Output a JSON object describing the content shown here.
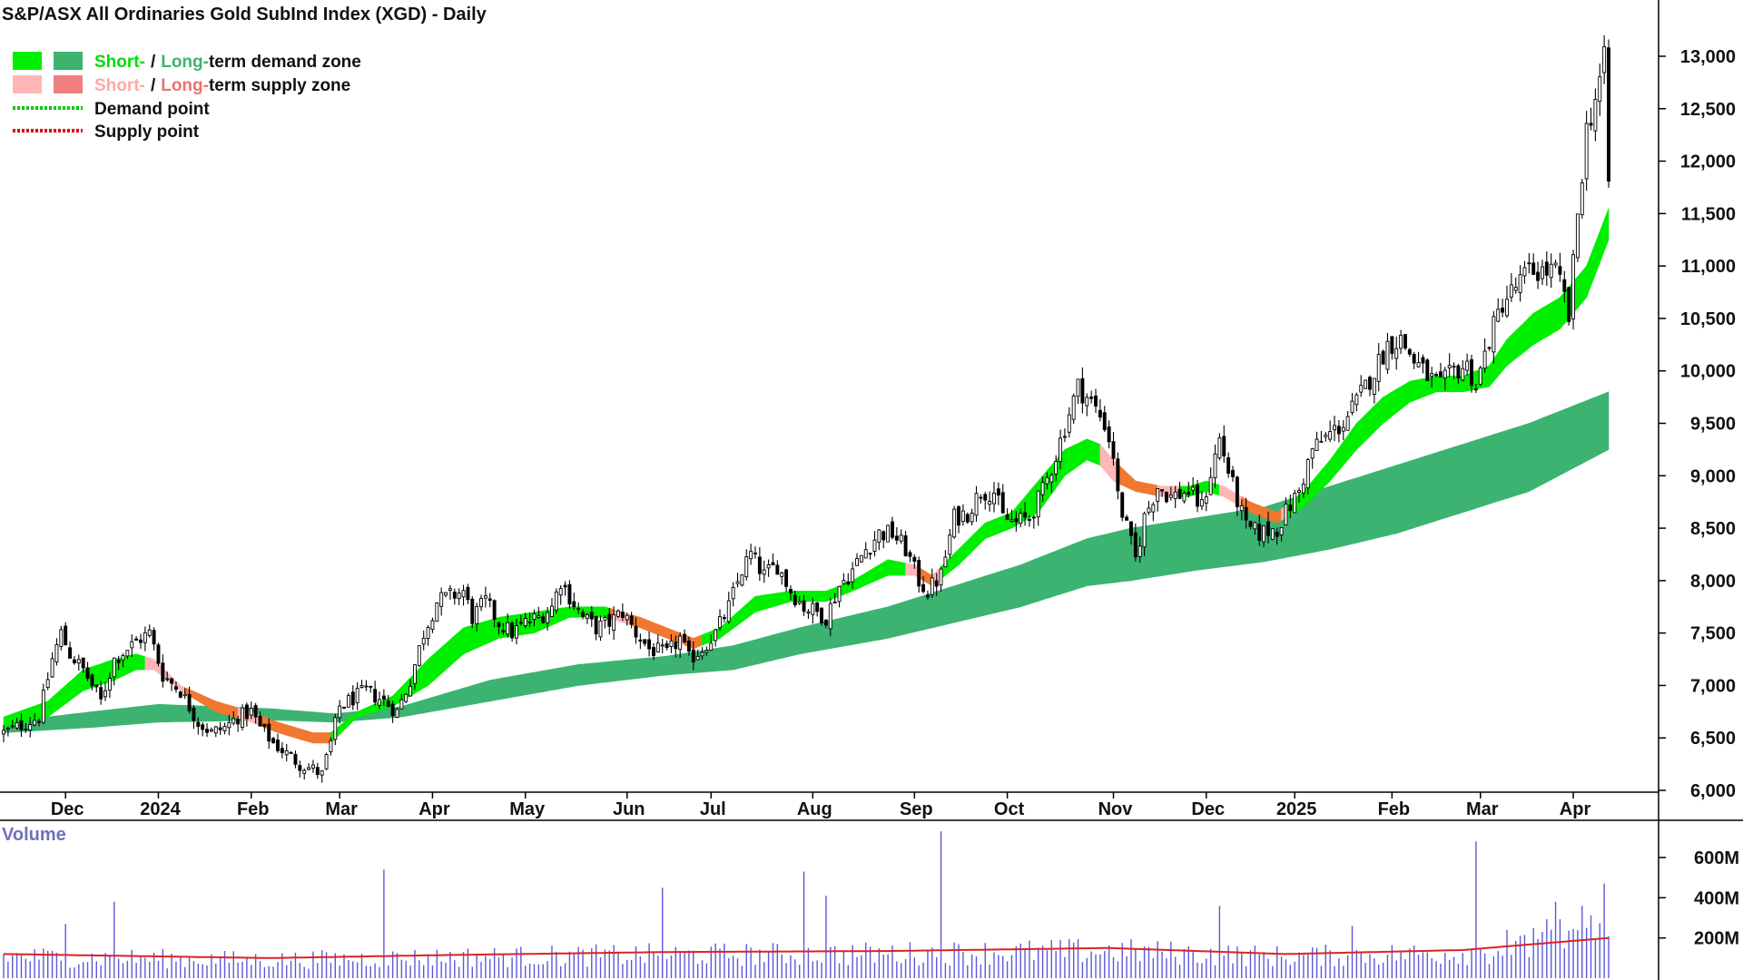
{
  "chart_data": {
    "type": "candlestick",
    "title": "S&P/ASX All Ordinaries Gold SubInd Index (XGD) - Daily",
    "ylim": [
      5900,
      13400
    ],
    "y_ticks": [
      {
        "value": 6000,
        "label": "6,000"
      },
      {
        "value": 6500,
        "label": "6,500"
      },
      {
        "value": 7000,
        "label": "7,000"
      },
      {
        "value": 7500,
        "label": "7,500"
      },
      {
        "value": 8000,
        "label": "8,000"
      },
      {
        "value": 8500,
        "label": "8,500"
      },
      {
        "value": 9000,
        "label": "9,000"
      },
      {
        "value": 9500,
        "label": "9,500"
      },
      {
        "value": 10000,
        "label": "10,000"
      },
      {
        "value": 10500,
        "label": "10,500"
      },
      {
        "value": 11000,
        "label": "11,000"
      },
      {
        "value": 11500,
        "label": "11,500"
      },
      {
        "value": 12000,
        "label": "12,000"
      },
      {
        "value": 12500,
        "label": "12,500"
      },
      {
        "value": 13000,
        "label": "13,000"
      }
    ],
    "x_ticks": [
      {
        "index": 14,
        "label": "Dec"
      },
      {
        "index": 35,
        "label": "2024"
      },
      {
        "index": 56,
        "label": "Feb"
      },
      {
        "index": 76,
        "label": "Mar"
      },
      {
        "index": 97,
        "label": "Apr"
      },
      {
        "index": 118,
        "label": "May"
      },
      {
        "index": 141,
        "label": "Jun"
      },
      {
        "index": 160,
        "label": "Jul"
      },
      {
        "index": 183,
        "label": "Aug"
      },
      {
        "index": 206,
        "label": "Sep"
      },
      {
        "index": 227,
        "label": "Oct"
      },
      {
        "index": 251,
        "label": "Nov"
      },
      {
        "index": 272,
        "label": "Dec"
      },
      {
        "index": 292,
        "label": "2025"
      },
      {
        "index": 314,
        "label": "Feb"
      },
      {
        "index": 334,
        "label": "Mar"
      },
      {
        "index": 355,
        "label": "Apr"
      }
    ],
    "close_path": [
      [
        0,
        6550
      ],
      [
        4,
        6620
      ],
      [
        8,
        6700
      ],
      [
        11,
        7250
      ],
      [
        13,
        7500
      ],
      [
        15,
        7300
      ],
      [
        18,
        7150
      ],
      [
        22,
        6850
      ],
      [
        25,
        7250
      ],
      [
        28,
        7350
      ],
      [
        31,
        7450
      ],
      [
        33,
        7500
      ],
      [
        36,
        7100
      ],
      [
        40,
        6950
      ],
      [
        44,
        6650
      ],
      [
        47,
        6550
      ],
      [
        50,
        6600
      ],
      [
        53,
        6700
      ],
      [
        56,
        6750
      ],
      [
        58,
        6600
      ],
      [
        61,
        6450
      ],
      [
        64,
        6350
      ],
      [
        67,
        6250
      ],
      [
        70,
        6200
      ],
      [
        72,
        6150
      ],
      [
        74,
        6450
      ],
      [
        76,
        6800
      ],
      [
        78,
        6850
      ],
      [
        82,
        6950
      ],
      [
        86,
        6850
      ],
      [
        89,
        6750
      ],
      [
        92,
        7050
      ],
      [
        95,
        7500
      ],
      [
        98,
        7800
      ],
      [
        101,
        7850
      ],
      [
        104,
        7900
      ],
      [
        106,
        7650
      ],
      [
        109,
        7800
      ],
      [
        112,
        7600
      ],
      [
        115,
        7500
      ],
      [
        118,
        7600
      ],
      [
        121,
        7650
      ],
      [
        124,
        7750
      ],
      [
        126,
        8000
      ],
      [
        128,
        7850
      ],
      [
        131,
        7650
      ],
      [
        134,
        7550
      ],
      [
        137,
        7600
      ],
      [
        140,
        7700
      ],
      [
        143,
        7500
      ],
      [
        146,
        7350
      ],
      [
        150,
        7300
      ],
      [
        153,
        7450
      ],
      [
        155,
        7250
      ],
      [
        158,
        7350
      ],
      [
        161,
        7500
      ],
      [
        164,
        7750
      ],
      [
        167,
        8100
      ],
      [
        169,
        8250
      ],
      [
        172,
        8050
      ],
      [
        175,
        8150
      ],
      [
        178,
        7900
      ],
      [
        181,
        7750
      ],
      [
        184,
        7700
      ],
      [
        186,
        7650
      ],
      [
        189,
        7950
      ],
      [
        192,
        8100
      ],
      [
        195,
        8300
      ],
      [
        198,
        8450
      ],
      [
        201,
        8450
      ],
      [
        204,
        8300
      ],
      [
        207,
        8000
      ],
      [
        209,
        7900
      ],
      [
        212,
        8050
      ],
      [
        215,
        8600
      ],
      [
        218,
        8650
      ],
      [
        221,
        8850
      ],
      [
        224,
        8850
      ],
      [
        226,
        8600
      ],
      [
        229,
        8550
      ],
      [
        232,
        8600
      ],
      [
        235,
        8850
      ],
      [
        238,
        9200
      ],
      [
        241,
        9600
      ],
      [
        243,
        9850
      ],
      [
        246,
        9700
      ],
      [
        249,
        9500
      ],
      [
        251,
        9200
      ],
      [
        252,
        8800
      ],
      [
        254,
        8500
      ],
      [
        256,
        8200
      ],
      [
        258,
        8600
      ],
      [
        261,
        8900
      ],
      [
        264,
        8800
      ],
      [
        268,
        8850
      ],
      [
        271,
        8700
      ],
      [
        275,
        9350
      ],
      [
        278,
        8900
      ],
      [
        281,
        8500
      ],
      [
        284,
        8450
      ],
      [
        288,
        8500
      ],
      [
        290,
        8650
      ],
      [
        293,
        8850
      ],
      [
        296,
        9250
      ],
      [
        300,
        9400
      ],
      [
        303,
        9500
      ],
      [
        306,
        9700
      ],
      [
        310,
        10000
      ],
      [
        313,
        10250
      ],
      [
        316,
        10300
      ],
      [
        319,
        10100
      ],
      [
        322,
        9950
      ],
      [
        325,
        9850
      ],
      [
        328,
        10000
      ],
      [
        331,
        10050
      ],
      [
        333,
        9850
      ],
      [
        336,
        10300
      ],
      [
        339,
        10650
      ],
      [
        342,
        10800
      ],
      [
        345,
        10950
      ],
      [
        348,
        10950
      ],
      [
        351,
        10950
      ],
      [
        353,
        10700
      ],
      [
        354,
        10500
      ],
      [
        356,
        11500
      ],
      [
        358,
        12300
      ],
      [
        360,
        12600
      ],
      [
        362,
        12950
      ],
      [
        363,
        11800
      ]
    ],
    "short_term_zone": {
      "upper": [
        [
          0,
          6700
        ],
        [
          10,
          6850
        ],
        [
          18,
          7150
        ],
        [
          25,
          7250
        ],
        [
          30,
          7300
        ],
        [
          34,
          7250
        ],
        [
          40,
          7000
        ],
        [
          48,
          6850
        ],
        [
          56,
          6750
        ],
        [
          62,
          6650
        ],
        [
          70,
          6550
        ],
        [
          74,
          6550
        ],
        [
          80,
          6750
        ],
        [
          88,
          6900
        ],
        [
          96,
          7250
        ],
        [
          104,
          7550
        ],
        [
          112,
          7650
        ],
        [
          120,
          7700
        ],
        [
          128,
          7750
        ],
        [
          136,
          7750
        ],
        [
          144,
          7650
        ],
        [
          150,
          7550
        ],
        [
          156,
          7450
        ],
        [
          162,
          7550
        ],
        [
          170,
          7850
        ],
        [
          178,
          7900
        ],
        [
          186,
          7900
        ],
        [
          192,
          8000
        ],
        [
          200,
          8200
        ],
        [
          206,
          8150
        ],
        [
          210,
          8050
        ],
        [
          216,
          8300
        ],
        [
          222,
          8550
        ],
        [
          228,
          8650
        ],
        [
          234,
          8950
        ],
        [
          240,
          9250
        ],
        [
          245,
          9350
        ],
        [
          248,
          9300
        ],
        [
          251,
          9150
        ],
        [
          256,
          8950
        ],
        [
          262,
          8900
        ],
        [
          268,
          8900
        ],
        [
          272,
          8950
        ],
        [
          276,
          8900
        ],
        [
          282,
          8750
        ],
        [
          288,
          8650
        ],
        [
          294,
          8850
        ],
        [
          300,
          9150
        ],
        [
          306,
          9500
        ],
        [
          312,
          9750
        ],
        [
          318,
          9900
        ],
        [
          324,
          9950
        ],
        [
          330,
          9950
        ],
        [
          336,
          10050
        ],
        [
          340,
          10300
        ],
        [
          346,
          10550
        ],
        [
          352,
          10700
        ],
        [
          358,
          11000
        ],
        [
          363,
          11550
        ]
      ],
      "lower": [
        [
          0,
          6600
        ],
        [
          10,
          6700
        ],
        [
          18,
          6950
        ],
        [
          25,
          7050
        ],
        [
          30,
          7150
        ],
        [
          34,
          7150
        ],
        [
          40,
          6950
        ],
        [
          48,
          6750
        ],
        [
          56,
          6650
        ],
        [
          62,
          6550
        ],
        [
          70,
          6450
        ],
        [
          74,
          6450
        ],
        [
          80,
          6700
        ],
        [
          88,
          6800
        ],
        [
          96,
          7000
        ],
        [
          104,
          7300
        ],
        [
          112,
          7450
        ],
        [
          120,
          7500
        ],
        [
          128,
          7650
        ],
        [
          136,
          7650
        ],
        [
          144,
          7550
        ],
        [
          150,
          7450
        ],
        [
          156,
          7350
        ],
        [
          162,
          7450
        ],
        [
          170,
          7700
        ],
        [
          178,
          7800
        ],
        [
          186,
          7800
        ],
        [
          192,
          7900
        ],
        [
          200,
          8050
        ],
        [
          206,
          8050
        ],
        [
          210,
          7950
        ],
        [
          216,
          8150
        ],
        [
          222,
          8400
        ],
        [
          228,
          8500
        ],
        [
          234,
          8650
        ],
        [
          240,
          9000
        ],
        [
          245,
          9150
        ],
        [
          248,
          9100
        ],
        [
          251,
          8950
        ],
        [
          256,
          8850
        ],
        [
          262,
          8800
        ],
        [
          268,
          8800
        ],
        [
          272,
          8850
        ],
        [
          276,
          8800
        ],
        [
          282,
          8650
        ],
        [
          288,
          8550
        ],
        [
          294,
          8700
        ],
        [
          300,
          8950
        ],
        [
          306,
          9250
        ],
        [
          312,
          9500
        ],
        [
          318,
          9700
        ],
        [
          324,
          9800
        ],
        [
          330,
          9800
        ],
        [
          336,
          9850
        ],
        [
          340,
          10050
        ],
        [
          346,
          10250
        ],
        [
          352,
          10400
        ],
        [
          358,
          10700
        ],
        [
          363,
          11250
        ]
      ]
    },
    "long_term_zone": {
      "upper": [
        [
          0,
          6650
        ],
        [
          20,
          6750
        ],
        [
          35,
          6820
        ],
        [
          60,
          6780
        ],
        [
          75,
          6730
        ],
        [
          90,
          6800
        ],
        [
          110,
          7050
        ],
        [
          130,
          7200
        ],
        [
          150,
          7280
        ],
        [
          165,
          7380
        ],
        [
          180,
          7550
        ],
        [
          200,
          7750
        ],
        [
          215,
          7950
        ],
        [
          230,
          8150
        ],
        [
          245,
          8400
        ],
        [
          255,
          8500
        ],
        [
          270,
          8600
        ],
        [
          285,
          8700
        ],
        [
          300,
          8900
        ],
        [
          315,
          9100
        ],
        [
          330,
          9300
        ],
        [
          345,
          9500
        ],
        [
          363,
          9800
        ]
      ],
      "lower": [
        [
          0,
          6550
        ],
        [
          20,
          6600
        ],
        [
          35,
          6650
        ],
        [
          60,
          6670
        ],
        [
          75,
          6650
        ],
        [
          90,
          6700
        ],
        [
          110,
          6850
        ],
        [
          130,
          7000
        ],
        [
          150,
          7100
        ],
        [
          165,
          7150
        ],
        [
          180,
          7300
        ],
        [
          200,
          7450
        ],
        [
          215,
          7600
        ],
        [
          230,
          7750
        ],
        [
          245,
          7950
        ],
        [
          255,
          8000
        ],
        [
          270,
          8100
        ],
        [
          285,
          8180
        ],
        [
          300,
          8300
        ],
        [
          315,
          8450
        ],
        [
          330,
          8650
        ],
        [
          345,
          8850
        ],
        [
          363,
          9250
        ]
      ]
    },
    "legend": {
      "row1_short": "Short-",
      "row1_long": "Long-",
      "row1_suffix": "term demand zone",
      "row2_short": "Short-",
      "row2_long": "Long-",
      "row2_suffix": "term supply zone",
      "row3": "Demand point",
      "row4": "Supply point",
      "slash": "/",
      "colors": {
        "short_demand": "#00ee00",
        "long_demand": "#3cb371",
        "short_supply": "#ffb6b6",
        "long_supply": "#f08080",
        "demand_point": "#00cc00",
        "supply_point": "#dd0000"
      }
    },
    "volume": {
      "title": "Volume",
      "ylim": [
        0,
        750
      ],
      "y_ticks": [
        {
          "value": 200,
          "label": "200M"
        },
        {
          "value": 400,
          "label": "400M"
        },
        {
          "value": 600,
          "label": "600M"
        }
      ],
      "average_level": [
        [
          0,
          120
        ],
        [
          60,
          100
        ],
        [
          100,
          115
        ],
        [
          150,
          130
        ],
        [
          200,
          135
        ],
        [
          250,
          150
        ],
        [
          290,
          120
        ],
        [
          330,
          140
        ],
        [
          363,
          200
        ]
      ],
      "spikes": [
        [
          14,
          270
        ],
        [
          25,
          380
        ],
        [
          86,
          540
        ],
        [
          149,
          450
        ],
        [
          181,
          530
        ],
        [
          186,
          410
        ],
        [
          212,
          730
        ],
        [
          275,
          360
        ],
        [
          305,
          260
        ],
        [
          333,
          680
        ],
        [
          340,
          240
        ],
        [
          351,
          380
        ],
        [
          357,
          360
        ],
        [
          362,
          470
        ]
      ]
    },
    "colors": {
      "candle": "#000000",
      "volume_bar": "#5a5ad8",
      "volume_avg": "#dd2222",
      "axis": "#000000",
      "short_demand": "#00ee00",
      "short_supply": "#ffb6b6",
      "long_demand": "#3cb371",
      "orange_transition": "#f07830"
    }
  }
}
